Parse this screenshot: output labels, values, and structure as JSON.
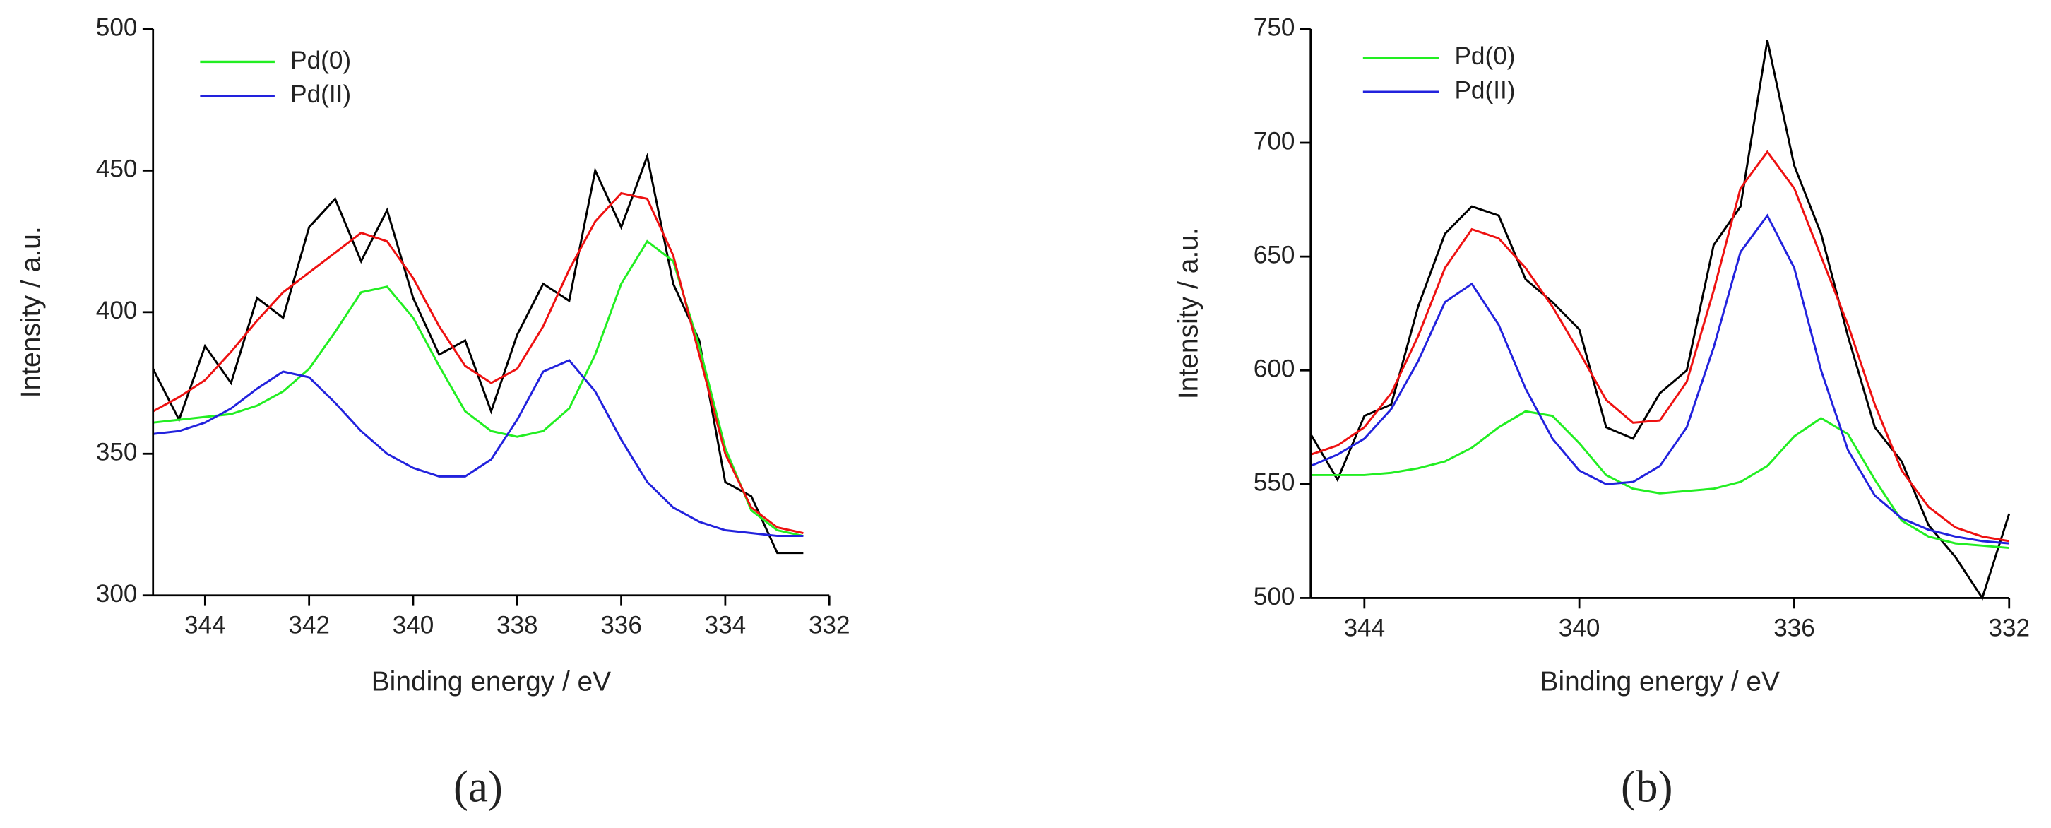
{
  "chart_data": [
    {
      "type": "line",
      "panel_label": "(a)",
      "x_label": "Binding energy / eV",
      "y_label": "Intensity / a.u.",
      "xlim": [
        345,
        332
      ],
      "xticks": [
        344,
        342,
        340,
        338,
        336,
        334,
        332
      ],
      "ylim": [
        300,
        500
      ],
      "yticks": [
        300,
        350,
        400,
        450,
        500
      ],
      "legend": "upper left",
      "x": [
        345,
        344.5,
        344,
        343.5,
        343,
        342.5,
        342,
        341.5,
        341,
        340.5,
        340,
        339.5,
        339,
        338.5,
        338,
        337.5,
        337,
        336.5,
        336,
        335.5,
        335,
        334.5,
        334,
        333.5,
        333,
        332.5
      ],
      "series": [
        {
          "color": "#000000",
          "values": [
            380,
            362,
            388,
            375,
            405,
            398,
            430,
            440,
            418,
            436,
            405,
            385,
            390,
            365,
            392,
            410,
            404,
            450,
            430,
            455,
            410,
            390,
            340,
            335,
            315,
            315
          ]
        },
        {
          "name": "Pd(0)",
          "color": "#22ee22",
          "values": [
            361,
            362,
            363,
            364,
            367,
            372,
            380,
            393,
            407,
            409,
            398,
            381,
            365,
            358,
            356,
            358,
            366,
            385,
            410,
            425,
            418,
            388,
            352,
            330,
            323,
            321
          ]
        },
        {
          "name": "Pd(II)",
          "color": "#2222dd",
          "values": [
            357,
            358,
            361,
            366,
            373,
            379,
            377,
            368,
            358,
            350,
            345,
            342,
            342,
            348,
            362,
            379,
            383,
            372,
            355,
            340,
            331,
            326,
            323,
            322,
            321,
            321
          ]
        },
        {
          "color": "#ee1111",
          "values": [
            365,
            370,
            376,
            386,
            397,
            407,
            414,
            421,
            428,
            425,
            412,
            395,
            381,
            375,
            380,
            395,
            415,
            432,
            442,
            440,
            420,
            385,
            350,
            331,
            324,
            322
          ]
        }
      ]
    },
    {
      "type": "line",
      "panel_label": "(b)",
      "x_label": "Binding energy / eV",
      "y_label": "Intensity / a.u.",
      "xlim": [
        345,
        332
      ],
      "xticks": [
        344,
        340,
        336,
        332
      ],
      "ylim": [
        500,
        750
      ],
      "yticks": [
        500,
        550,
        600,
        650,
        700,
        750
      ],
      "legend": "upper left",
      "x": [
        345,
        344.5,
        344,
        343.5,
        343,
        342.5,
        342,
        341.5,
        341,
        340.5,
        340,
        339.5,
        339,
        338.5,
        338,
        337.5,
        337,
        336.5,
        336,
        335.5,
        335,
        334.5,
        334,
        333.5,
        333,
        332.5,
        332
      ],
      "series": [
        {
          "color": "#000000",
          "values": [
            572,
            552,
            580,
            585,
            628,
            660,
            672,
            668,
            640,
            630,
            618,
            575,
            570,
            590,
            600,
            655,
            672,
            745,
            690,
            660,
            615,
            575,
            560,
            532,
            518,
            500,
            537
          ]
        },
        {
          "name": "Pd(0)",
          "color": "#22ee22",
          "values": [
            554,
            554,
            554,
            555,
            557,
            560,
            566,
            575,
            582,
            580,
            568,
            554,
            548,
            546,
            547,
            548,
            551,
            558,
            571,
            579,
            572,
            552,
            534,
            527,
            524,
            523,
            522
          ]
        },
        {
          "name": "Pd(II)",
          "color": "#2222dd",
          "values": [
            558,
            563,
            570,
            583,
            604,
            630,
            638,
            620,
            592,
            570,
            556,
            550,
            551,
            558,
            575,
            610,
            652,
            668,
            645,
            600,
            565,
            545,
            535,
            530,
            527,
            525,
            524
          ]
        },
        {
          "color": "#ee1111",
          "values": [
            563,
            567,
            575,
            590,
            615,
            645,
            662,
            658,
            645,
            628,
            608,
            587,
            577,
            578,
            595,
            635,
            680,
            696,
            680,
            650,
            620,
            585,
            556,
            540,
            531,
            527,
            525
          ]
        }
      ]
    }
  ]
}
